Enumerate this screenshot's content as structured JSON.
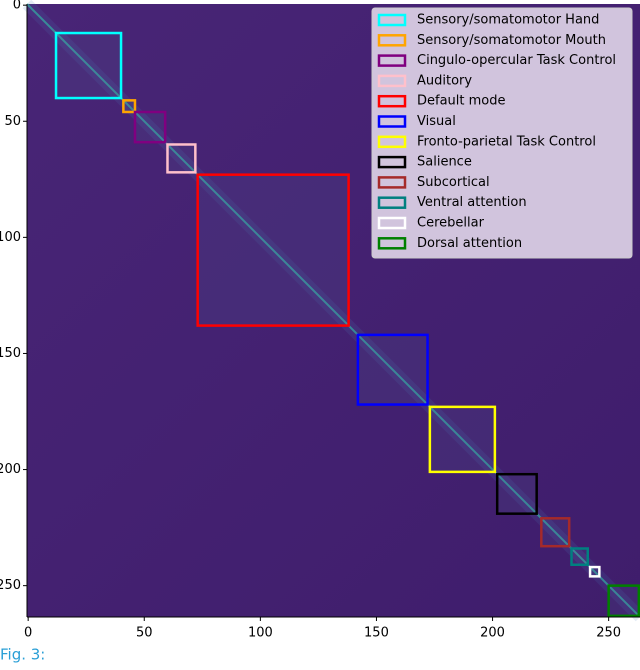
{
  "chart_data": {
    "type": "heatmap",
    "xlim": [
      -0.5,
      263.5
    ],
    "ylim": [
      -0.5,
      263.5
    ],
    "xticks": [
      0,
      50,
      100,
      150,
      200,
      250
    ],
    "yticks": [
      0,
      50,
      100,
      150,
      200,
      250
    ],
    "legend": "upper right",
    "series": [
      {
        "name": "Sensory/somatomotor Hand",
        "color": "#00ffff",
        "range": [
          12,
          40
        ]
      },
      {
        "name": "Sensory/somatomotor Mouth",
        "color": "#ffa500",
        "range": [
          41,
          46
        ]
      },
      {
        "name": "Cingulo-opercular Task Control",
        "color": "#800080",
        "range": [
          46,
          59
        ]
      },
      {
        "name": "Auditory",
        "color": "#ffc0cb",
        "range": [
          60,
          72
        ]
      },
      {
        "name": "Default mode",
        "color": "#ff0000",
        "range": [
          73,
          138
        ]
      },
      {
        "name": "Visual",
        "color": "#0000ff",
        "range": [
          142,
          172
        ]
      },
      {
        "name": "Fronto-parietal Task Control",
        "color": "#ffff00",
        "range": [
          173,
          201
        ]
      },
      {
        "name": "Salience",
        "color": "#000000",
        "range": [
          202,
          219
        ]
      },
      {
        "name": "Subcortical",
        "color": "#a52a2a",
        "range": [
          221,
          233
        ]
      },
      {
        "name": "Ventral attention",
        "color": "#008080",
        "range": [
          234,
          241
        ]
      },
      {
        "name": "Cerebellar",
        "color": "#ffffff",
        "range": [
          242,
          246
        ]
      },
      {
        "name": "Dorsal attention",
        "color": "#008000",
        "range": [
          250,
          263
        ]
      }
    ],
    "caption": "Fig. 3:"
  }
}
